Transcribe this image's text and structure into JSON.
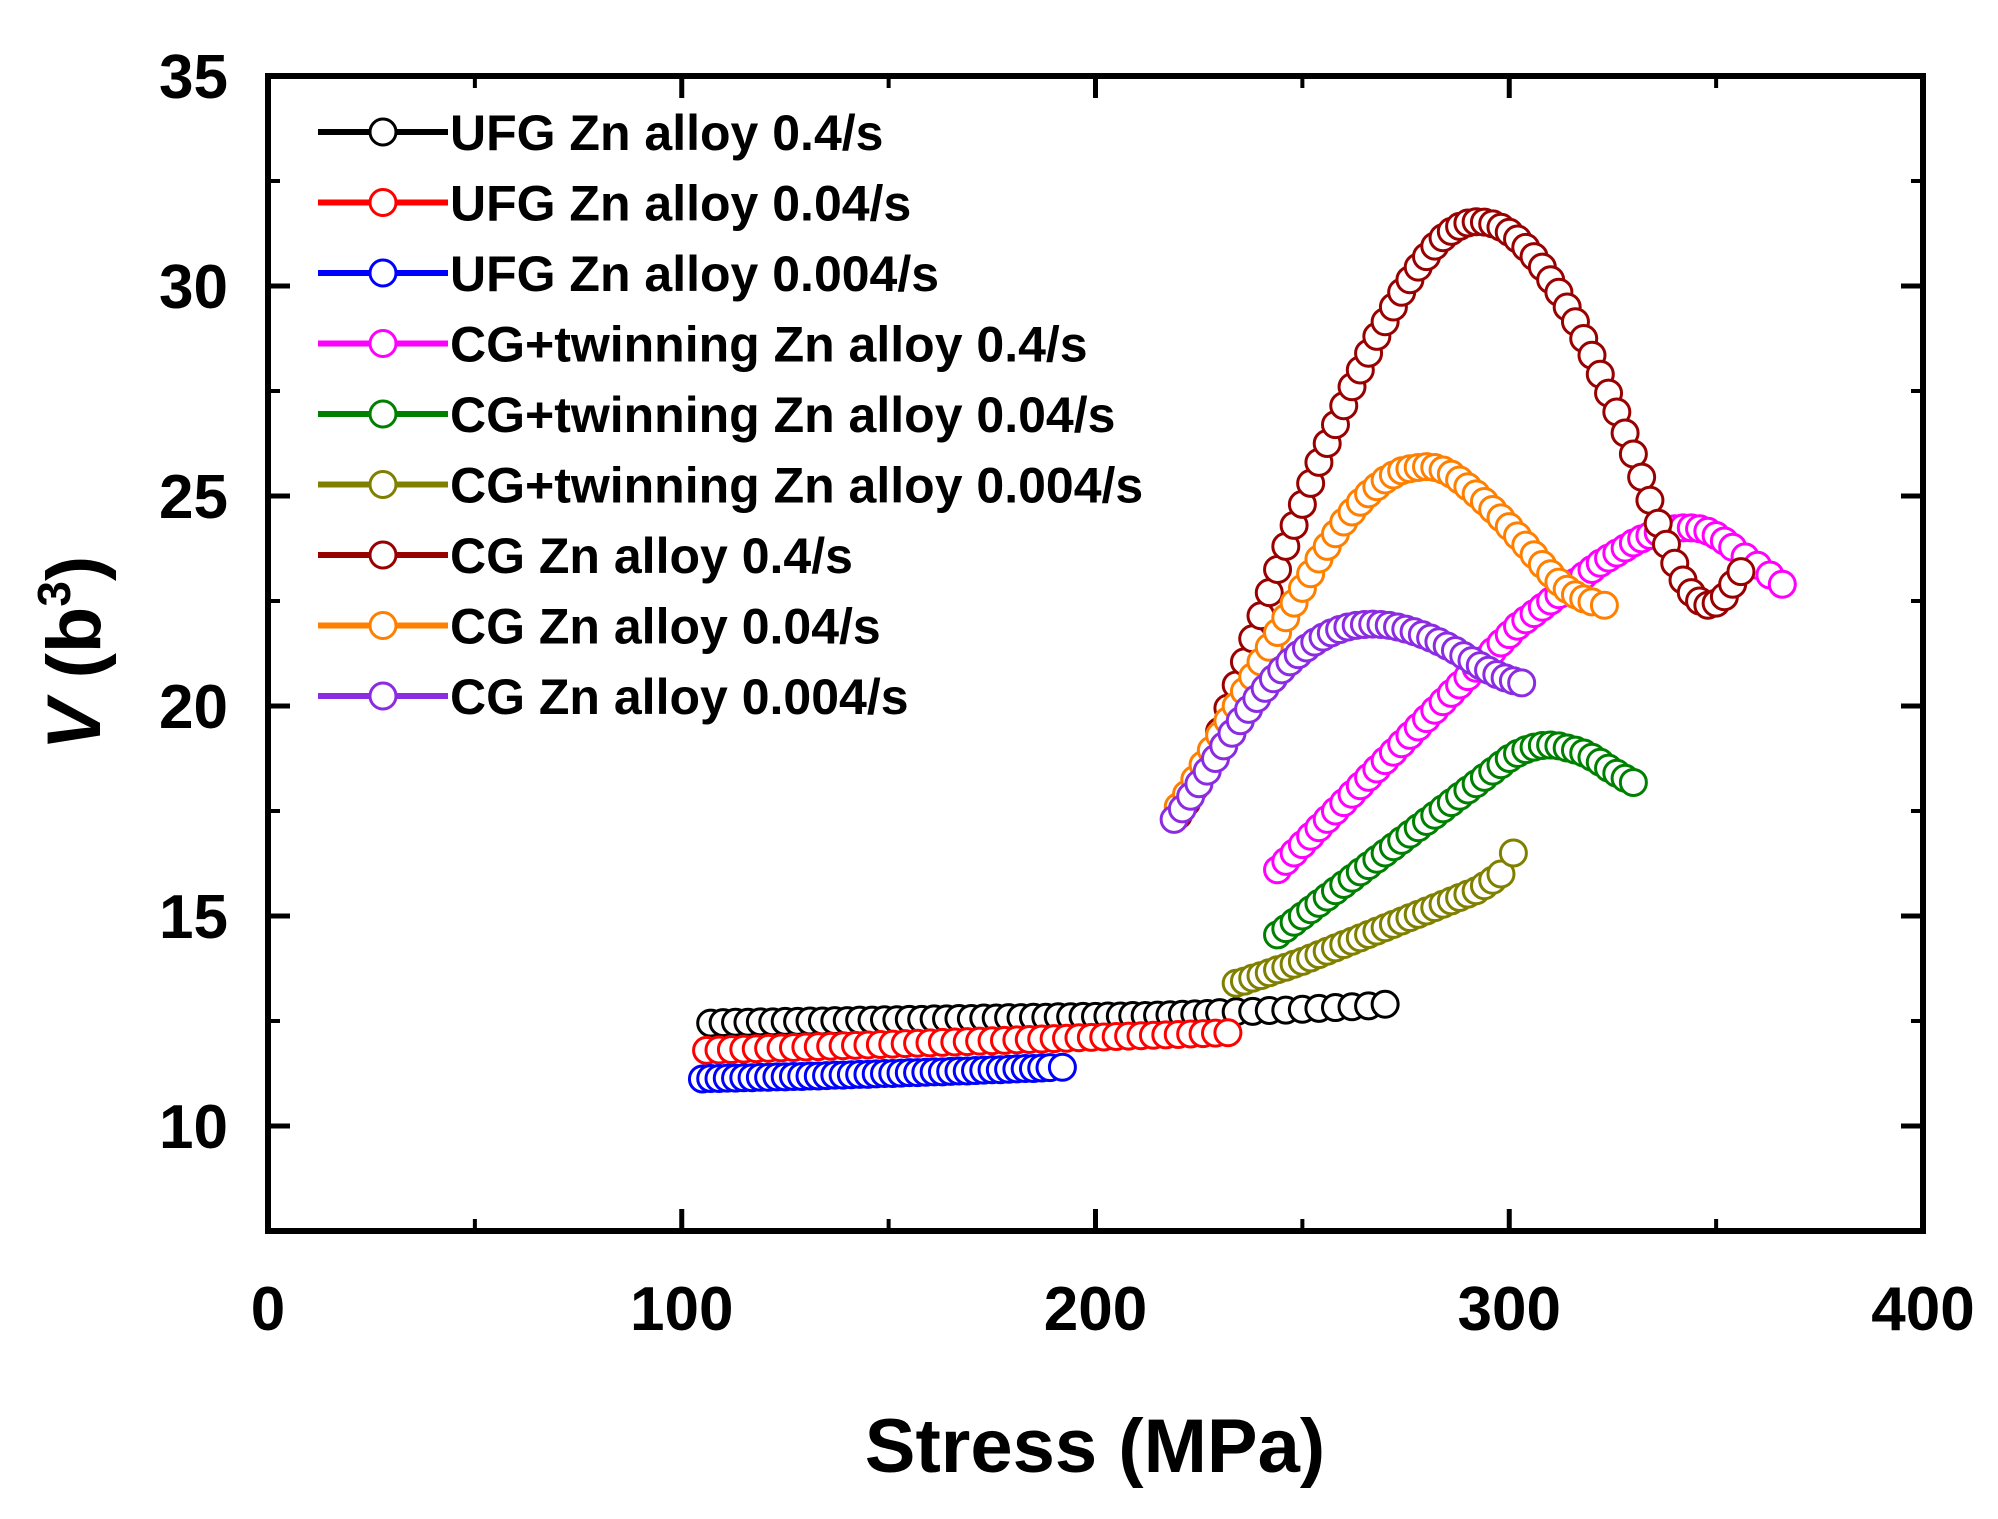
{
  "chart_data": {
    "type": "scatter",
    "title": "",
    "xlabel": "Stress (MPa)",
    "ylabel": {
      "main": "V",
      "paren_open": " (b",
      "sup": "3",
      "paren_close": ")"
    },
    "xlim": [
      0,
      400
    ],
    "ylim": [
      7.5,
      35
    ],
    "xticks": [
      0,
      100,
      200,
      300,
      400
    ],
    "yticks": [
      10,
      15,
      20,
      25,
      30,
      35
    ],
    "grid": false,
    "legend_position": "top-left",
    "series": [
      {
        "name": "UFG Zn alloy 0.4/s",
        "color": "#000000",
        "x": [
          107,
          110,
          113,
          116,
          119,
          122,
          125,
          128,
          131,
          134,
          137,
          140,
          143,
          146,
          149,
          152,
          155,
          158,
          161,
          164,
          167,
          170,
          173,
          176,
          179,
          182,
          185,
          188,
          191,
          194,
          197,
          200,
          203,
          206,
          209,
          212,
          215,
          218,
          221,
          224,
          227,
          230,
          234,
          238,
          242,
          246,
          250,
          254,
          258,
          262,
          266,
          270
        ],
        "y": [
          12.45,
          12.46,
          12.47,
          12.47,
          12.48,
          12.48,
          12.49,
          12.49,
          12.5,
          12.5,
          12.51,
          12.51,
          12.52,
          12.52,
          12.53,
          12.53,
          12.54,
          12.54,
          12.55,
          12.55,
          12.56,
          12.56,
          12.57,
          12.57,
          12.58,
          12.58,
          12.59,
          12.59,
          12.6,
          12.6,
          12.61,
          12.61,
          12.62,
          12.62,
          12.63,
          12.63,
          12.64,
          12.65,
          12.66,
          12.67,
          12.68,
          12.7,
          12.72,
          12.73,
          12.75,
          12.76,
          12.78,
          12.8,
          12.82,
          12.84,
          12.86,
          12.9
        ]
      },
      {
        "name": "UFG Zn alloy 0.04/s",
        "color": "#ff0000",
        "x": [
          106,
          109,
          112,
          115,
          118,
          121,
          124,
          127,
          130,
          133,
          136,
          139,
          142,
          145,
          148,
          151,
          154,
          157,
          160,
          163,
          166,
          169,
          172,
          175,
          178,
          181,
          184,
          187,
          190,
          193,
          196,
          199,
          202,
          205,
          208,
          211,
          214,
          217,
          220,
          223,
          226,
          229,
          232
        ],
        "y": [
          11.8,
          11.81,
          11.82,
          11.83,
          11.84,
          11.85,
          11.86,
          11.87,
          11.88,
          11.89,
          11.9,
          11.91,
          11.92,
          11.93,
          11.94,
          11.95,
          11.96,
          11.97,
          11.98,
          11.99,
          12.0,
          12.01,
          12.02,
          12.03,
          12.04,
          12.05,
          12.06,
          12.07,
          12.08,
          12.09,
          12.1,
          12.11,
          12.12,
          12.13,
          12.14,
          12.15,
          12.16,
          12.17,
          12.18,
          12.19,
          12.2,
          12.21,
          12.22
        ]
      },
      {
        "name": "UFG Zn alloy 0.004/s",
        "color": "#0000ff",
        "x": [
          105,
          107,
          109,
          111,
          113,
          115,
          117,
          119,
          121,
          123,
          125,
          127,
          129,
          131,
          133,
          135,
          137,
          139,
          141,
          143,
          145,
          147,
          149,
          151,
          153,
          155,
          157,
          159,
          161,
          163,
          165,
          167,
          169,
          171,
          173,
          175,
          177,
          179,
          181,
          183,
          185,
          187,
          189,
          192
        ],
        "y": [
          11.12,
          11.13,
          11.13,
          11.14,
          11.14,
          11.15,
          11.15,
          11.16,
          11.16,
          11.17,
          11.17,
          11.18,
          11.18,
          11.19,
          11.19,
          11.2,
          11.21,
          11.21,
          11.22,
          11.23,
          11.23,
          11.24,
          11.25,
          11.25,
          11.26,
          11.27,
          11.27,
          11.28,
          11.29,
          11.29,
          11.3,
          11.31,
          11.31,
          11.32,
          11.33,
          11.34,
          11.34,
          11.35,
          11.36,
          11.37,
          11.37,
          11.38,
          11.39,
          11.4
        ]
      },
      {
        "name": "CG+twinning Zn alloy 0.4/s",
        "color": "#ff00ff",
        "x": [
          244,
          246,
          248,
          250,
          252,
          254,
          256,
          258,
          260,
          262,
          264,
          266,
          268,
          270,
          272,
          274,
          276,
          278,
          280,
          282,
          284,
          286,
          288,
          290,
          292,
          294,
          296,
          298,
          300,
          302,
          304,
          306,
          308,
          310,
          312,
          314,
          316,
          318,
          320,
          322,
          324,
          326,
          328,
          330,
          332,
          334,
          336,
          338,
          340,
          342,
          344,
          346,
          348,
          350,
          352,
          354,
          357,
          360,
          363,
          366
        ],
        "y": [
          16.1,
          16.3,
          16.5,
          16.7,
          16.9,
          17.1,
          17.3,
          17.5,
          17.7,
          17.9,
          18.1,
          18.3,
          18.5,
          18.7,
          18.9,
          19.1,
          19.3,
          19.5,
          19.7,
          19.9,
          20.1,
          20.3,
          20.5,
          20.7,
          20.9,
          21.1,
          21.3,
          21.5,
          21.7,
          21.9,
          22.05,
          22.2,
          22.35,
          22.5,
          22.65,
          22.8,
          22.95,
          23.1,
          23.25,
          23.4,
          23.52,
          23.64,
          23.76,
          23.88,
          23.98,
          24.06,
          24.13,
          24.18,
          24.22,
          24.24,
          24.24,
          24.22,
          24.16,
          24.06,
          23.93,
          23.78,
          23.55,
          23.35,
          23.12,
          22.9
        ]
      },
      {
        "name": "CG+twinning Zn alloy 0.04/s",
        "color": "#008000",
        "x": [
          244,
          246,
          248,
          250,
          252,
          254,
          256,
          258,
          260,
          262,
          264,
          266,
          268,
          270,
          272,
          274,
          276,
          278,
          280,
          282,
          284,
          286,
          288,
          290,
          292,
          294,
          296,
          298,
          300,
          302,
          304,
          306,
          308,
          310,
          312,
          314,
          316,
          318,
          320,
          322,
          324,
          326,
          328,
          330
        ],
        "y": [
          14.55,
          14.7,
          14.85,
          15.0,
          15.15,
          15.3,
          15.45,
          15.6,
          15.75,
          15.9,
          16.05,
          16.2,
          16.35,
          16.5,
          16.65,
          16.8,
          16.95,
          17.1,
          17.25,
          17.4,
          17.55,
          17.7,
          17.85,
          18.0,
          18.15,
          18.3,
          18.45,
          18.6,
          18.75,
          18.87,
          18.96,
          19.02,
          19.06,
          19.07,
          19.05,
          19.0,
          18.95,
          18.88,
          18.78,
          18.66,
          18.52,
          18.4,
          18.28,
          18.18
        ]
      },
      {
        "name": "CG+twinning Zn alloy 0.004/s",
        "color": "#808000",
        "x": [
          234,
          236,
          238,
          240,
          242,
          244,
          246,
          248,
          250,
          252,
          254,
          256,
          258,
          260,
          262,
          264,
          266,
          268,
          270,
          272,
          274,
          276,
          278,
          280,
          282,
          284,
          286,
          288,
          290,
          292,
          294,
          296,
          298,
          301
        ],
        "y": [
          13.4,
          13.45,
          13.52,
          13.58,
          13.65,
          13.72,
          13.78,
          13.85,
          13.92,
          14.0,
          14.08,
          14.16,
          14.24,
          14.32,
          14.4,
          14.48,
          14.56,
          14.64,
          14.72,
          14.8,
          14.88,
          14.96,
          15.04,
          15.12,
          15.2,
          15.28,
          15.36,
          15.44,
          15.52,
          15.6,
          15.72,
          15.85,
          16.0,
          16.5
        ]
      },
      {
        "name": "CG Zn alloy 0.4/s",
        "color": "#990000",
        "x": [
          220,
          222,
          224,
          226,
          228,
          230,
          232,
          234,
          236,
          238,
          240,
          242,
          244,
          246,
          248,
          250,
          252,
          254,
          256,
          258,
          260,
          262,
          264,
          266,
          268,
          270,
          272,
          274,
          276,
          278,
          280,
          282,
          284,
          286,
          288,
          290,
          292,
          294,
          296,
          298,
          300,
          302,
          304,
          306,
          308,
          310,
          312,
          314,
          316,
          318,
          320,
          322,
          324,
          326,
          328,
          330,
          332,
          334,
          336,
          338,
          340,
          342,
          344,
          346,
          348,
          350,
          352,
          354,
          356
        ],
        "y": [
          17.4,
          17.7,
          18.05,
          18.45,
          18.9,
          19.4,
          19.95,
          20.5,
          21.05,
          21.6,
          22.15,
          22.7,
          23.25,
          23.8,
          24.3,
          24.8,
          25.3,
          25.8,
          26.25,
          26.7,
          27.15,
          27.6,
          28.0,
          28.4,
          28.8,
          29.15,
          29.5,
          29.85,
          30.15,
          30.45,
          30.7,
          30.95,
          31.15,
          31.3,
          31.42,
          31.5,
          31.53,
          31.52,
          31.48,
          31.4,
          31.28,
          31.12,
          30.92,
          30.7,
          30.45,
          30.15,
          29.85,
          29.5,
          29.15,
          28.75,
          28.35,
          27.9,
          27.45,
          27.0,
          26.5,
          26.0,
          25.45,
          24.9,
          24.35,
          23.85,
          23.4,
          23.0,
          22.7,
          22.5,
          22.4,
          22.45,
          22.6,
          22.9,
          23.2
        ]
      },
      {
        "name": "CG Zn alloy 0.04/s",
        "color": "#ff8000",
        "x": [
          220,
          222,
          224,
          226,
          228,
          230,
          232,
          234,
          236,
          238,
          240,
          242,
          244,
          246,
          248,
          250,
          252,
          254,
          256,
          258,
          260,
          262,
          264,
          266,
          268,
          270,
          272,
          274,
          276,
          278,
          280,
          282,
          284,
          286,
          288,
          290,
          292,
          294,
          296,
          298,
          300,
          302,
          304,
          306,
          308,
          310,
          312,
          314,
          316,
          318,
          320,
          323
        ],
        "y": [
          17.6,
          17.9,
          18.25,
          18.6,
          18.95,
          19.3,
          19.65,
          20.0,
          20.35,
          20.7,
          21.05,
          21.4,
          21.75,
          22.1,
          22.45,
          22.8,
          23.15,
          23.5,
          23.8,
          24.1,
          24.38,
          24.62,
          24.85,
          25.05,
          25.22,
          25.38,
          25.5,
          25.6,
          25.65,
          25.68,
          25.7,
          25.68,
          25.62,
          25.52,
          25.38,
          25.22,
          25.05,
          24.87,
          24.68,
          24.48,
          24.27,
          24.05,
          23.83,
          23.6,
          23.37,
          23.15,
          22.95,
          22.78,
          22.65,
          22.55,
          22.48,
          22.4
        ]
      },
      {
        "name": "CG Zn alloy 0.004/s",
        "color": "#8b2be2",
        "x": [
          219,
          221,
          223,
          225,
          227,
          229,
          231,
          233,
          235,
          237,
          239,
          241,
          243,
          245,
          247,
          249,
          251,
          253,
          255,
          257,
          259,
          261,
          263,
          265,
          267,
          269,
          271,
          273,
          275,
          277,
          279,
          281,
          283,
          285,
          287,
          289,
          291,
          293,
          295,
          297,
          299,
          301,
          303
        ],
        "y": [
          17.3,
          17.55,
          17.85,
          18.15,
          18.45,
          18.75,
          19.05,
          19.35,
          19.65,
          19.92,
          20.18,
          20.42,
          20.65,
          20.86,
          21.05,
          21.22,
          21.38,
          21.52,
          21.64,
          21.74,
          21.82,
          21.88,
          21.92,
          21.94,
          21.95,
          21.94,
          21.92,
          21.88,
          21.83,
          21.77,
          21.7,
          21.62,
          21.53,
          21.43,
          21.32,
          21.2,
          21.08,
          20.96,
          20.85,
          20.75,
          20.67,
          20.6,
          20.55
        ]
      }
    ]
  }
}
